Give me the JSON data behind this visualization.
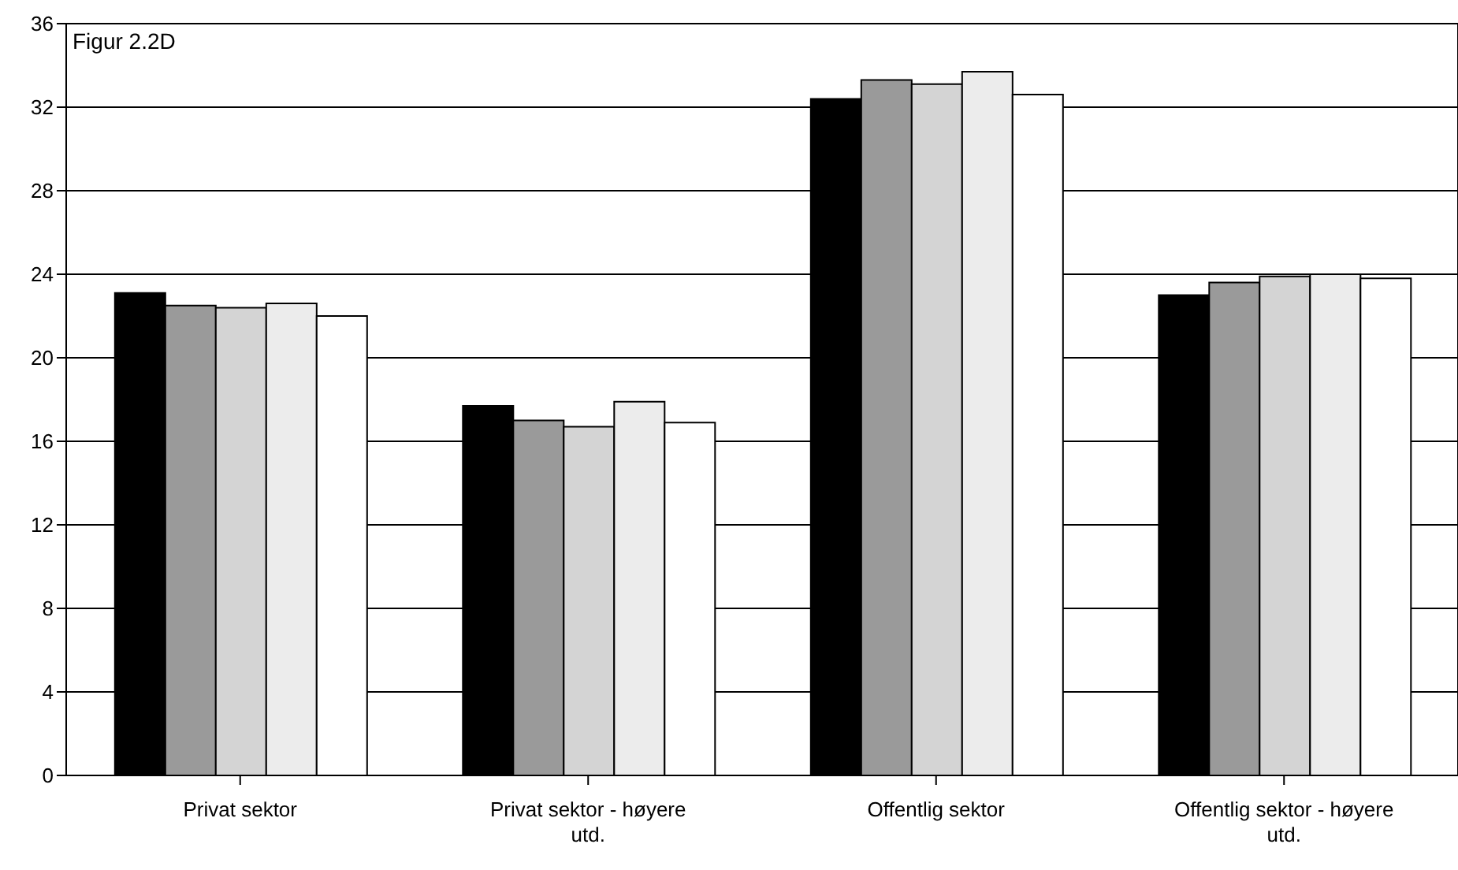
{
  "chart_data": {
    "type": "bar",
    "title": "Figur 2.2D",
    "categories": [
      "Privat sektor",
      "Privat sektor - høyere utd.",
      "Offentlig sektor",
      "Offentlig sektor - høyere utd."
    ],
    "series": [
      {
        "color": "#000000",
        "values": [
          23.1,
          17.7,
          32.4,
          23.0
        ]
      },
      {
        "color": "#9a9a9a",
        "values": [
          22.5,
          17.0,
          33.3,
          23.6
        ]
      },
      {
        "color": "#d4d4d4",
        "values": [
          22.4,
          16.7,
          33.1,
          23.9
        ]
      },
      {
        "color": "#ececec",
        "values": [
          22.6,
          17.9,
          33.7,
          24.0
        ]
      },
      {
        "color": "#ffffff",
        "values": [
          22.0,
          16.9,
          32.6,
          23.8
        ]
      }
    ],
    "ylim": [
      0,
      36
    ],
    "yticks": [
      0,
      4,
      8,
      12,
      16,
      20,
      24,
      28,
      32,
      36
    ],
    "grid": "y",
    "legend": false
  }
}
